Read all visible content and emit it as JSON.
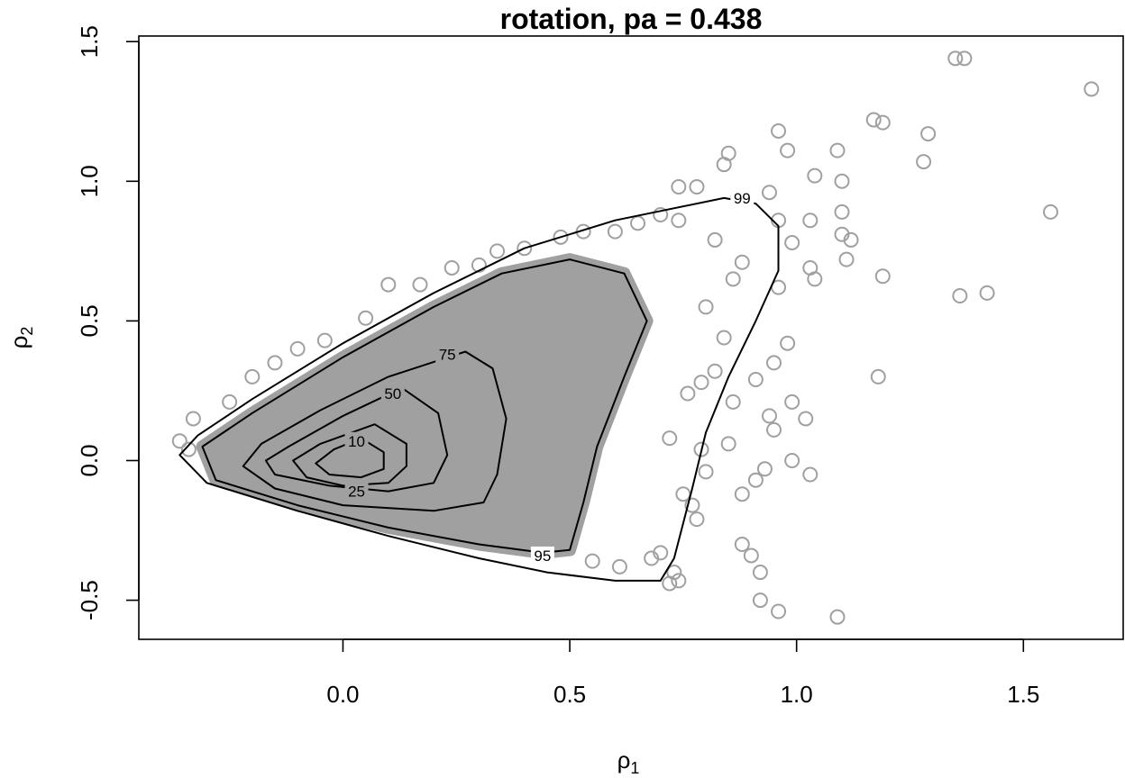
{
  "chart_data": {
    "type": "scatter",
    "title": "rotation, pa =  0.438",
    "xlabel": {
      "base": "ρ",
      "sub": "1"
    },
    "ylabel": {
      "base": "ρ",
      "sub": "2"
    },
    "xlim": [
      -0.45,
      1.72
    ],
    "ylim": [
      -0.64,
      1.52
    ],
    "xticks": [
      0.0,
      0.5,
      1.0,
      1.5
    ],
    "xtick_labels": [
      "0.0",
      "0.5",
      "1.0",
      "1.5"
    ],
    "yticks": [
      -0.5,
      0.0,
      0.5,
      1.0,
      1.5
    ],
    "ytick_labels": [
      "-0.5",
      "0.0",
      "0.5",
      "1.0",
      "1.5"
    ],
    "grid": false,
    "legend": "none",
    "colors": {
      "points": "#a0a0a0",
      "contours": "#000000",
      "frame": "#000000"
    },
    "points": [
      [
        1.35,
        1.44
      ],
      [
        1.37,
        1.44
      ],
      [
        1.65,
        1.33
      ],
      [
        1.17,
        1.22
      ],
      [
        1.19,
        1.21
      ],
      [
        1.09,
        1.11
      ],
      [
        1.29,
        1.17
      ],
      [
        1.28,
        1.07
      ],
      [
        1.04,
        1.02
      ],
      [
        1.1,
        1.0
      ],
      [
        1.56,
        0.89
      ],
      [
        1.1,
        0.89
      ],
      [
        1.03,
        0.86
      ],
      [
        1.1,
        0.81
      ],
      [
        1.12,
        0.79
      ],
      [
        1.11,
        0.72
      ],
      [
        1.03,
        0.69
      ],
      [
        1.04,
        0.65
      ],
      [
        1.19,
        0.66
      ],
      [
        1.36,
        0.59
      ],
      [
        1.42,
        0.6
      ],
      [
        0.96,
        1.18
      ],
      [
        0.98,
        1.11
      ],
      [
        0.85,
        1.1
      ],
      [
        0.84,
        1.06
      ],
      [
        0.87,
        0.94
      ],
      [
        0.94,
        0.96
      ],
      [
        0.96,
        0.86
      ],
      [
        0.99,
        0.78
      ],
      [
        0.96,
        0.62
      ],
      [
        0.98,
        0.42
      ],
      [
        0.95,
        0.35
      ],
      [
        0.99,
        0.21
      ],
      [
        1.02,
        0.15
      ],
      [
        0.94,
        0.16
      ],
      [
        0.95,
        0.11
      ],
      [
        1.18,
        0.3
      ],
      [
        0.91,
        0.29
      ],
      [
        0.99,
        0.0
      ],
      [
        1.03,
        -0.05
      ],
      [
        0.93,
        -0.03
      ],
      [
        0.91,
        -0.07
      ],
      [
        0.88,
        -0.12
      ],
      [
        0.88,
        -0.3
      ],
      [
        0.9,
        -0.34
      ],
      [
        0.92,
        -0.4
      ],
      [
        0.92,
        -0.5
      ],
      [
        0.96,
        -0.54
      ],
      [
        1.09,
        -0.56
      ],
      [
        0.79,
        0.04
      ],
      [
        0.78,
        -0.21
      ],
      [
        0.77,
        -0.16
      ],
      [
        0.75,
        -0.12
      ],
      [
        0.73,
        -0.4
      ],
      [
        0.72,
        -0.44
      ],
      [
        0.74,
        -0.43
      ],
      [
        0.7,
        -0.33
      ],
      [
        0.68,
        -0.35
      ],
      [
        0.61,
        -0.38
      ],
      [
        0.55,
        -0.36
      ],
      [
        0.72,
        0.08
      ],
      [
        0.76,
        0.24
      ],
      [
        0.79,
        0.28
      ],
      [
        0.84,
        0.44
      ],
      [
        0.82,
        0.32
      ],
      [
        0.8,
        0.55
      ],
      [
        0.86,
        0.65
      ],
      [
        0.88,
        0.71
      ],
      [
        0.82,
        0.79
      ],
      [
        0.78,
        0.98
      ],
      [
        0.74,
        0.98
      ],
      [
        0.74,
        0.86
      ],
      [
        0.7,
        0.88
      ],
      [
        0.65,
        0.85
      ],
      [
        0.6,
        0.82
      ],
      [
        0.53,
        0.82
      ],
      [
        0.48,
        0.8
      ],
      [
        0.4,
        0.76
      ],
      [
        0.34,
        0.75
      ],
      [
        0.3,
        0.7
      ],
      [
        0.24,
        0.69
      ],
      [
        0.17,
        0.63
      ],
      [
        0.1,
        0.63
      ],
      [
        0.05,
        0.51
      ],
      [
        -0.04,
        0.43
      ],
      [
        -0.1,
        0.4
      ],
      [
        -0.15,
        0.35
      ],
      [
        -0.2,
        0.3
      ],
      [
        -0.25,
        0.21
      ],
      [
        -0.33,
        0.15
      ],
      [
        -0.36,
        0.07
      ],
      [
        -0.34,
        0.04
      ],
      [
        0.86,
        0.21
      ],
      [
        0.85,
        0.06
      ],
      [
        0.8,
        -0.04
      ]
    ],
    "contours": [
      {
        "label": "99",
        "label_at": [
          0.88,
          0.94
        ],
        "path": [
          [
            0.84,
            0.94
          ],
          [
            0.91,
            0.92
          ],
          [
            0.96,
            0.84
          ],
          [
            0.96,
            0.68
          ],
          [
            0.91,
            0.5
          ],
          [
            0.85,
            0.3
          ],
          [
            0.8,
            0.1
          ],
          [
            0.77,
            -0.1
          ],
          [
            0.73,
            -0.35
          ],
          [
            0.7,
            -0.43
          ],
          [
            0.6,
            -0.43
          ],
          [
            0.45,
            -0.4
          ],
          [
            0.3,
            -0.35
          ],
          [
            0.1,
            -0.27
          ],
          [
            -0.1,
            -0.18
          ],
          [
            -0.3,
            -0.08
          ],
          [
            -0.36,
            0.02
          ],
          [
            -0.32,
            0.09
          ],
          [
            -0.2,
            0.22
          ],
          [
            0.0,
            0.42
          ],
          [
            0.2,
            0.6
          ],
          [
            0.4,
            0.76
          ],
          [
            0.6,
            0.86
          ],
          [
            0.84,
            0.94
          ]
        ]
      },
      {
        "label": "95",
        "label_at": [
          0.44,
          -0.34
        ],
        "path": [
          [
            0.5,
            0.72
          ],
          [
            0.62,
            0.67
          ],
          [
            0.67,
            0.5
          ],
          [
            0.62,
            0.3
          ],
          [
            0.56,
            0.05
          ],
          [
            0.53,
            -0.15
          ],
          [
            0.5,
            -0.32
          ],
          [
            0.44,
            -0.33
          ],
          [
            0.3,
            -0.3
          ],
          [
            0.1,
            -0.24
          ],
          [
            -0.1,
            -0.16
          ],
          [
            -0.28,
            -0.07
          ],
          [
            -0.31,
            0.05
          ],
          [
            -0.2,
            0.17
          ],
          [
            0.0,
            0.37
          ],
          [
            0.2,
            0.55
          ],
          [
            0.35,
            0.67
          ],
          [
            0.5,
            0.72
          ]
        ]
      },
      {
        "label": "75",
        "label_at": [
          0.23,
          0.38
        ],
        "path": [
          [
            0.27,
            0.39
          ],
          [
            0.33,
            0.33
          ],
          [
            0.36,
            0.15
          ],
          [
            0.34,
            -0.05
          ],
          [
            0.31,
            -0.15
          ],
          [
            0.2,
            -0.18
          ],
          [
            0.0,
            -0.16
          ],
          [
            -0.15,
            -0.1
          ],
          [
            -0.22,
            -0.02
          ],
          [
            -0.18,
            0.06
          ],
          [
            -0.05,
            0.18
          ],
          [
            0.1,
            0.3
          ],
          [
            0.27,
            0.39
          ]
        ]
      },
      {
        "label": "50",
        "label_at": [
          0.11,
          0.24
        ],
        "path": [
          [
            0.13,
            0.26
          ],
          [
            0.21,
            0.17
          ],
          [
            0.23,
            0.02
          ],
          [
            0.2,
            -0.08
          ],
          [
            0.1,
            -0.11
          ],
          [
            -0.03,
            -0.09
          ],
          [
            -0.15,
            -0.05
          ],
          [
            -0.17,
            0.0
          ],
          [
            -0.12,
            0.05
          ],
          [
            0.0,
            0.16
          ],
          [
            0.13,
            0.26
          ]
        ]
      },
      {
        "label": "25",
        "label_at": [
          0.03,
          -0.11
        ],
        "path": [
          [
            0.07,
            0.13
          ],
          [
            0.14,
            0.06
          ],
          [
            0.14,
            -0.02
          ],
          [
            0.1,
            -0.08
          ],
          [
            0.0,
            -0.09
          ],
          [
            -0.08,
            -0.06
          ],
          [
            -0.11,
            0.0
          ],
          [
            -0.05,
            0.06
          ],
          [
            0.07,
            0.13
          ]
        ]
      },
      {
        "label": "10",
        "label_at": [
          0.03,
          0.07
        ],
        "path": [
          [
            0.04,
            0.08
          ],
          [
            0.09,
            0.03
          ],
          [
            0.09,
            -0.03
          ],
          [
            0.04,
            -0.06
          ],
          [
            -0.03,
            -0.05
          ],
          [
            -0.06,
            -0.01
          ],
          [
            -0.02,
            0.04
          ],
          [
            0.04,
            0.08
          ]
        ]
      }
    ]
  }
}
